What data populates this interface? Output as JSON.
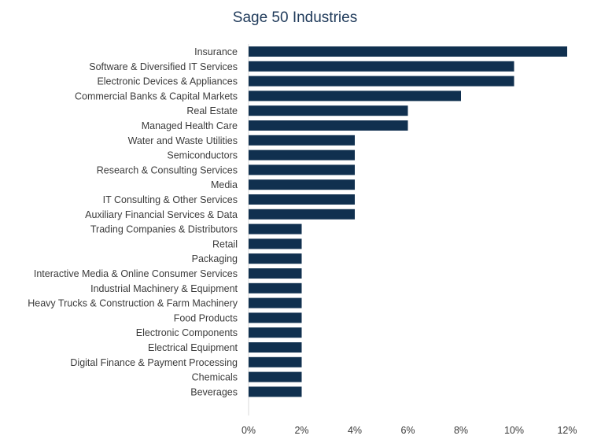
{
  "chart_data": {
    "type": "bar",
    "orientation": "horizontal",
    "title": "Sage 50 Industries",
    "xlabel": "",
    "ylabel": "",
    "xlim": [
      0,
      12
    ],
    "x_ticks": [
      "0%",
      "2%",
      "4%",
      "6%",
      "8%",
      "10%",
      "12%"
    ],
    "grid": false,
    "bar_color": "#10304f",
    "categories": [
      "Insurance",
      "Software & Diversified IT Services",
      "Electronic Devices & Appliances",
      "Commercial Banks & Capital Markets",
      "Real Estate",
      "Managed Health Care",
      "Water and Waste Utilities",
      "Semiconductors",
      "Research & Consulting Services",
      "Media",
      "IT Consulting & Other Services",
      "Auxiliary Financial Services & Data",
      "Trading Companies & Distributors",
      "Retail",
      "Packaging",
      "Interactive Media & Online Consumer Services",
      "Industrial Machinery & Equipment",
      "Heavy Trucks & Construction & Farm Machinery",
      "Food Products",
      "Electronic Components",
      "Electrical Equipment",
      "Digital Finance & Payment Processing",
      "Chemicals",
      "Beverages"
    ],
    "values": [
      12,
      10,
      10,
      8,
      6,
      6,
      4,
      4,
      4,
      4,
      4,
      4,
      2,
      2,
      2,
      2,
      2,
      2,
      2,
      2,
      2,
      2,
      2,
      2
    ]
  }
}
